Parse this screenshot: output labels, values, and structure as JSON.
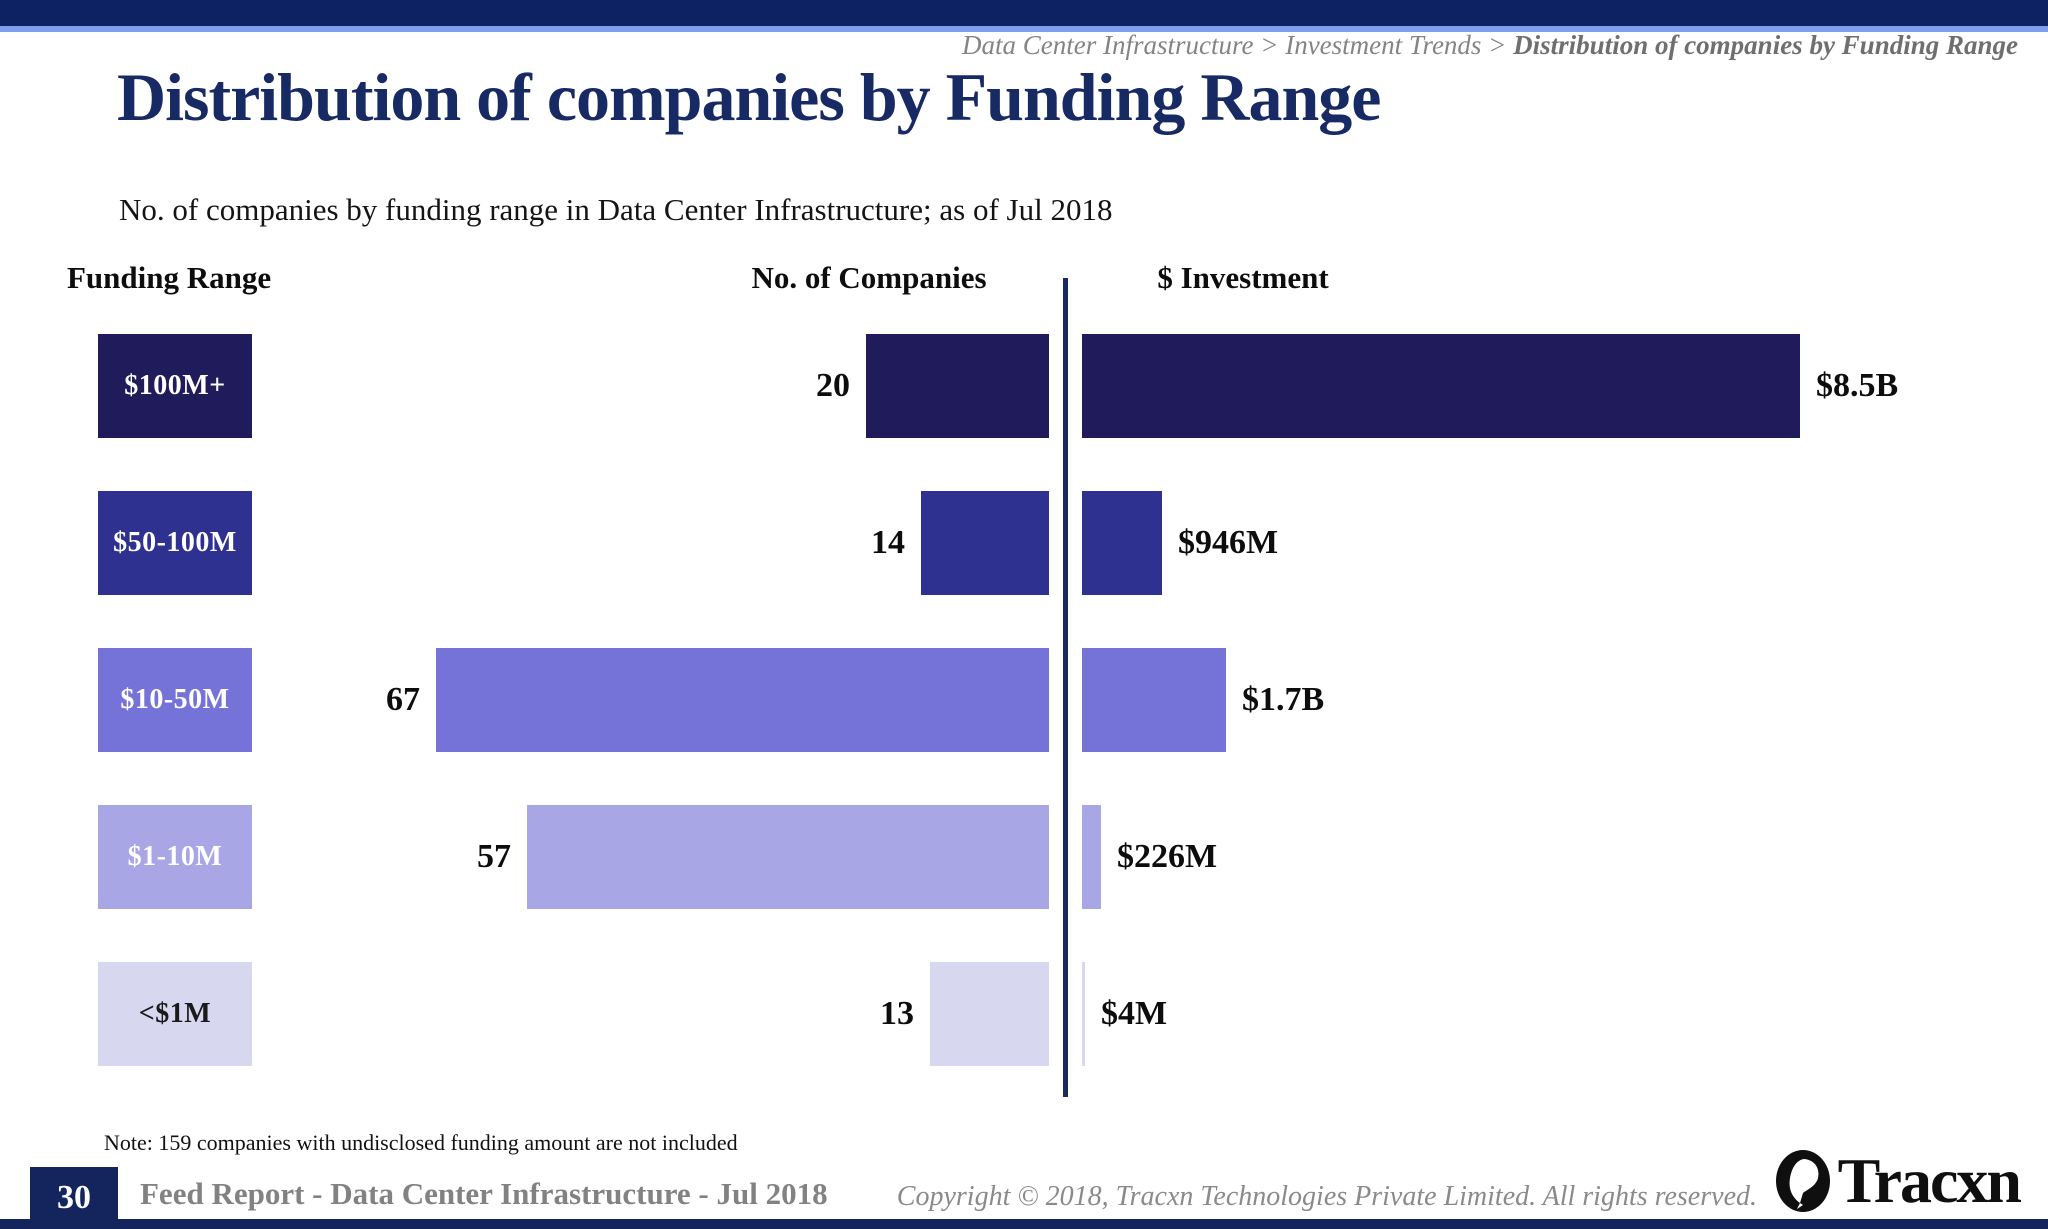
{
  "breadcrumb": {
    "path": "Data Center Infrastructure > Investment Trends > ",
    "current": "Distribution of companies by Funding Range"
  },
  "header": {
    "title": "Distribution of companies by Funding Range",
    "subtitle": "No. of companies by funding range in Data Center Infrastructure; as of Jul 2018"
  },
  "chart_data": {
    "type": "bar",
    "title": "Distribution of companies by Funding Range",
    "columns": {
      "range": "Funding Range",
      "companies": "No. of Companies",
      "investment": "$ Investment"
    },
    "rows": [
      {
        "range": "$100M+",
        "companies": 20,
        "investment_label": "$8.5B",
        "investment_musd": 8500,
        "color": "#201c5b",
        "label_color": "#ffffff"
      },
      {
        "range": "$50-100M",
        "companies": 14,
        "investment_label": "$946M",
        "investment_musd": 946,
        "color": "#2e3190",
        "label_color": "#ffffff"
      },
      {
        "range": "$10-50M",
        "companies": 67,
        "investment_label": "$1.7B",
        "investment_musd": 1700,
        "color": "#7673d8",
        "label_color": "#ffffff"
      },
      {
        "range": "$1-10M",
        "companies": 57,
        "investment_label": "$226M",
        "investment_musd": 226,
        "color": "#a8a6e4",
        "label_color": "#ffffff"
      },
      {
        "range": "<$1M",
        "companies": 13,
        "investment_label": "$4M",
        "investment_musd": 4,
        "color": "#d8d7f0",
        "label_color": "#1a1a1a"
      }
    ],
    "note": "Note: 159 companies with undisclosed funding amount are not included",
    "legend_position": "none",
    "grid": false
  },
  "footer": {
    "page_number": "30",
    "report_title": "Feed Report - Data Center Infrastructure - Jul 2018",
    "copyright": "Copyright © 2018, Tracxn Technologies Private Limited. All rights reserved.",
    "brand": "Tracxn"
  }
}
